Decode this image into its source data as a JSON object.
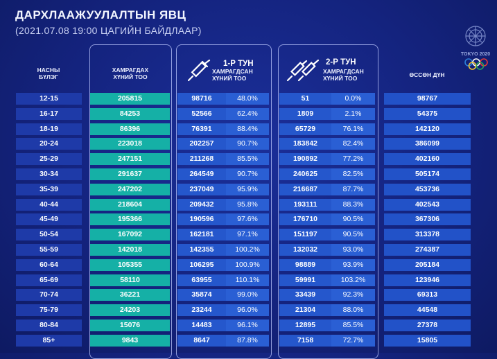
{
  "header": {
    "title": "ДАРХЛААЖУУЛАЛТЫН ЯВЦ",
    "subtitle": "(2021.07.08  19:00 ЦАГИЙН БАЙДЛААР)"
  },
  "columns": {
    "age_line1": "НАСНЫ",
    "age_line2": "БҮЛЭГ",
    "covered_line1": "ХАМРАГДАХ",
    "covered_line2": "ХҮНИЙ ТОО",
    "dose1_title": "1-Р ТУН",
    "dose1_line1": "ХАМРАГДСАН",
    "dose1_line2": "ХҮНИЙ ТОО",
    "dose2_title": "2-Р ТУН",
    "dose2_line1": "ХАМРАГДСАН",
    "dose2_line2": "ХҮНИЙ ТОО",
    "total": "ӨССӨН ДҮН"
  },
  "logo": {
    "text": "TOKYO 2020",
    "ring_colors": [
      "#2c7fd8",
      "#ffffff",
      "#e33b3b",
      "#f3c630",
      "#28a35a"
    ]
  },
  "rows": [
    {
      "age": "12-15",
      "covered": "205815",
      "d1": "98716",
      "d1p": "48.0%",
      "d2": "51",
      "d2p": "0.0%",
      "total": "98767"
    },
    {
      "age": "16-17",
      "covered": "84253",
      "d1": "52566",
      "d1p": "62.4%",
      "d2": "1809",
      "d2p": "2.1%",
      "total": "54375"
    },
    {
      "age": "18-19",
      "covered": "86396",
      "d1": "76391",
      "d1p": "88.4%",
      "d2": "65729",
      "d2p": "76.1%",
      "total": "142120"
    },
    {
      "age": "20-24",
      "covered": "223018",
      "d1": "202257",
      "d1p": "90.7%",
      "d2": "183842",
      "d2p": "82.4%",
      "total": "386099"
    },
    {
      "age": "25-29",
      "covered": "247151",
      "d1": "211268",
      "d1p": "85.5%",
      "d2": "190892",
      "d2p": "77.2%",
      "total": "402160"
    },
    {
      "age": "30-34",
      "covered": "291637",
      "d1": "264549",
      "d1p": "90.7%",
      "d2": "240625",
      "d2p": "82.5%",
      "total": "505174"
    },
    {
      "age": "35-39",
      "covered": "247202",
      "d1": "237049",
      "d1p": "95.9%",
      "d2": "216687",
      "d2p": "87.7%",
      "total": "453736"
    },
    {
      "age": "40-44",
      "covered": "218604",
      "d1": "209432",
      "d1p": "95.8%",
      "d2": "193111",
      "d2p": "88.3%",
      "total": "402543"
    },
    {
      "age": "45-49",
      "covered": "195366",
      "d1": "190596",
      "d1p": "97.6%",
      "d2": "176710",
      "d2p": "90.5%",
      "total": "367306"
    },
    {
      "age": "50-54",
      "covered": "167092",
      "d1": "162181",
      "d1p": "97.1%",
      "d2": "151197",
      "d2p": "90.5%",
      "total": "313378"
    },
    {
      "age": "55-59",
      "covered": "142018",
      "d1": "142355",
      "d1p": "100.2%",
      "d2": "132032",
      "d2p": "93.0%",
      "total": "274387"
    },
    {
      "age": "60-64",
      "covered": "105355",
      "d1": "106295",
      "d1p": "100.9%",
      "d2": "98889",
      "d2p": "93.9%",
      "total": "205184"
    },
    {
      "age": "65-69",
      "covered": "58110",
      "d1": "63955",
      "d1p": "110.1%",
      "d2": "59991",
      "d2p": "103.2%",
      "total": "123946"
    },
    {
      "age": "70-74",
      "covered": "36221",
      "d1": "35874",
      "d1p": "99.0%",
      "d2": "33439",
      "d2p": "92.3%",
      "total": "69313"
    },
    {
      "age": "75-79",
      "covered": "24203",
      "d1": "23244",
      "d1p": "96.0%",
      "d2": "21304",
      "d2p": "88.0%",
      "total": "44548"
    },
    {
      "age": "80-84",
      "covered": "15076",
      "d1": "14483",
      "d1p": "96.1%",
      "d2": "12895",
      "d2p": "85.5%",
      "total": "27378"
    },
    {
      "age": "85+",
      "covered": "9843",
      "d1": "8647",
      "d1p": "87.8%",
      "d2": "7158",
      "d2p": "72.7%",
      "total": "15805"
    }
  ]
}
